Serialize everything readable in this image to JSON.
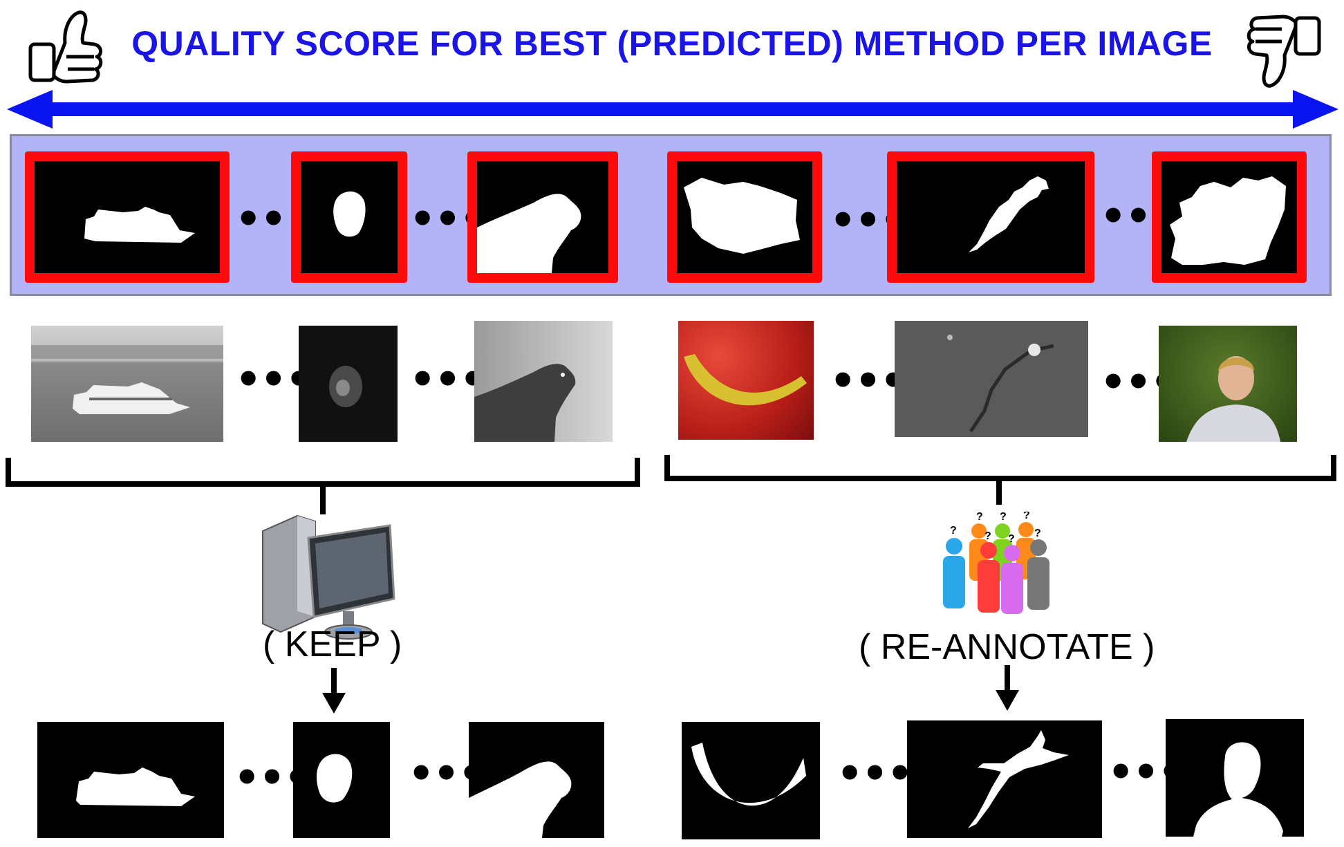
{
  "diagram": {
    "title": "QUALITY SCORE FOR BEST (PREDICTED) METHOD PER IMAGE",
    "keep_label": "( KEEP )",
    "reannotate_label": "( RE-ANNOTATE )",
    "ellipsis": "•••",
    "colors": {
      "title": "#1a14e6",
      "arrow": "#0a14f0",
      "band": "#b3b3f7",
      "frame": "#ff0a0a"
    },
    "icons": [
      "thumbs-up-icon",
      "thumbs-down-icon",
      "computer-icon",
      "crowd-icon",
      "down-arrow-icon"
    ]
  }
}
